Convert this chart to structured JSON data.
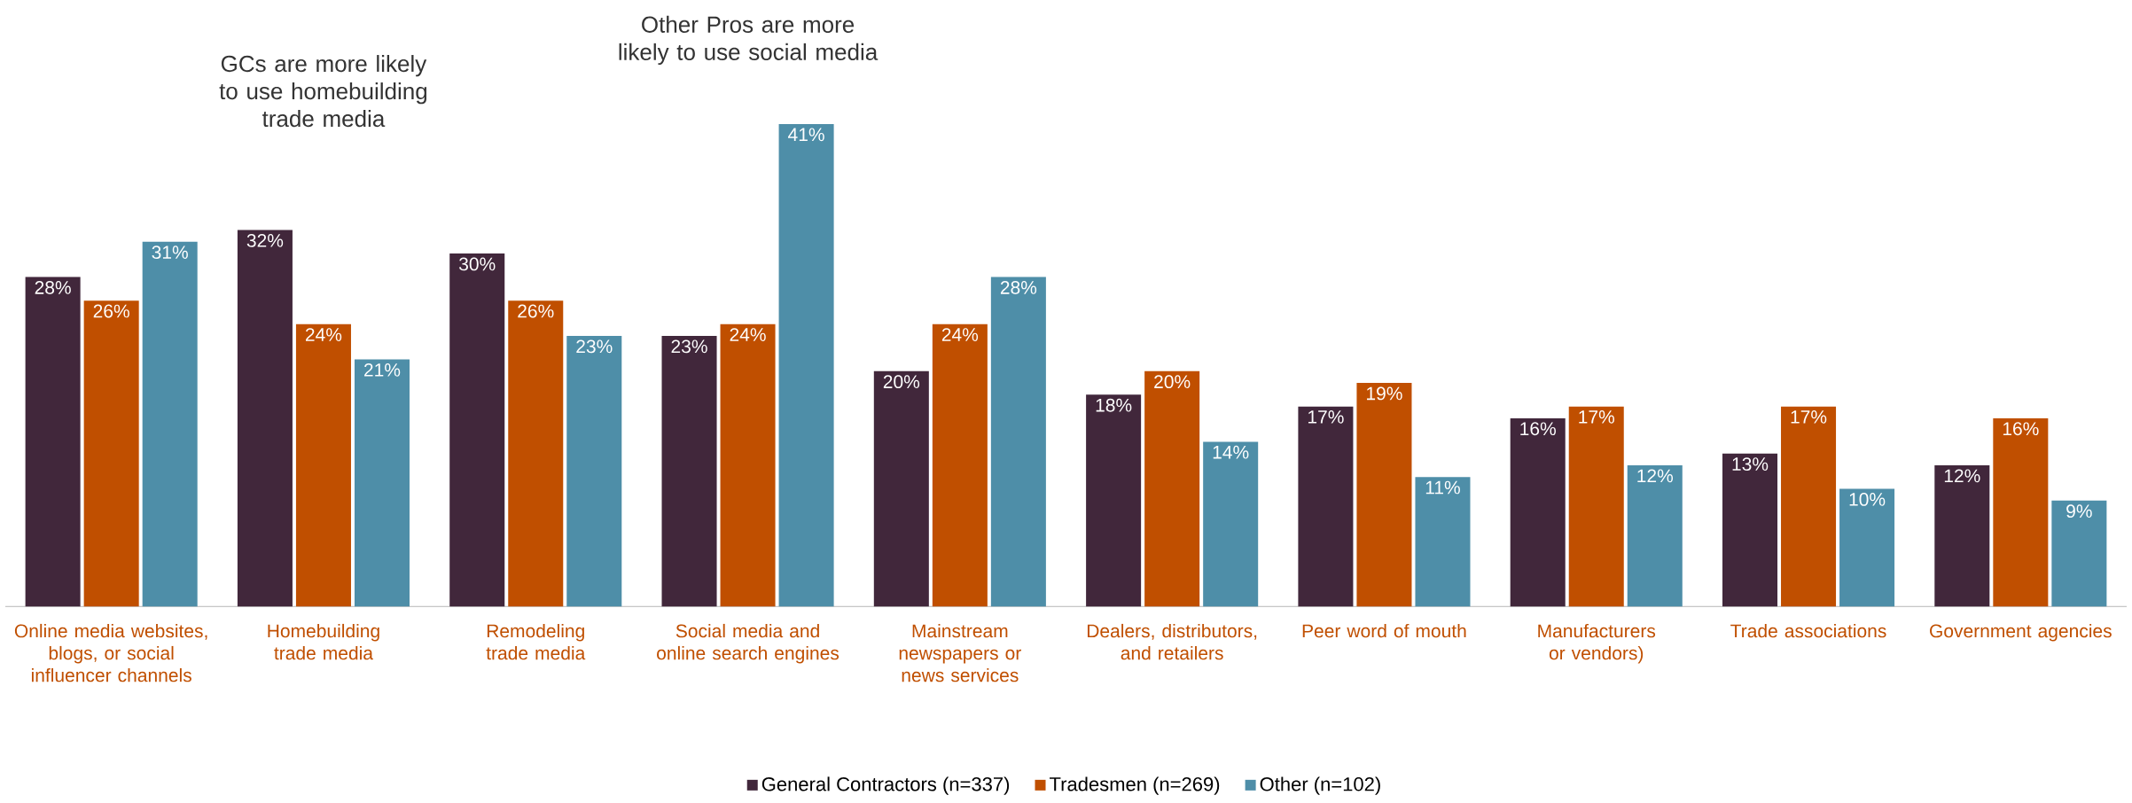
{
  "chart_data": {
    "type": "bar",
    "legend": "bottom",
    "categories": [
      "Online media websites, blogs, or social influencer channels",
      "Homebuilding trade media",
      "Remodeling trade media",
      "Social media and online search engines",
      "Mainstream newspapers or news services",
      "Dealers, distributors, and retailers",
      "Peer word of mouth",
      "Manufacturers or vendors)",
      "Trade associations",
      "Government agencies"
    ],
    "series": [
      {
        "name": "General Contractors (n=337)",
        "color": "#41273b",
        "values": [
          28,
          32,
          30,
          23,
          20,
          18,
          17,
          16,
          13,
          12
        ],
        "value_labels": [
          "28%",
          "32%",
          "30%",
          "23%",
          "20%",
          "18%",
          "17%",
          "16%",
          "13%",
          "12%"
        ]
      },
      {
        "name": "Tradesmen (n=269)",
        "color": "#c04f00",
        "values": [
          26,
          24,
          26,
          24,
          24,
          20,
          19,
          17,
          17,
          16
        ],
        "value_labels": [
          "26%",
          "24%",
          "26%",
          "24%",
          "24%",
          "20%",
          "19%",
          "17%",
          "17%",
          "16%"
        ]
      },
      {
        "name": "Other (n=102)",
        "color": "#4e8ea8",
        "values": [
          31,
          21,
          23,
          41,
          28,
          14,
          11,
          12,
          10,
          9
        ],
        "value_labels": [
          "31%",
          "21%",
          "23%",
          "41%",
          "28%",
          "14%",
          "11%",
          "12%",
          "10%",
          "9%"
        ]
      }
    ],
    "annotations": [
      "GCs are more likely to use homebuilding trade media",
      "Other Pros are more likely to use social media"
    ]
  }
}
